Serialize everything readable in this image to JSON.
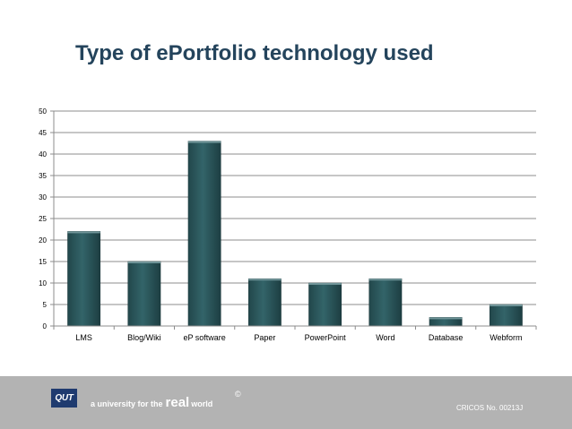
{
  "slide": {
    "title": "Type of ePortfolio technology used"
  },
  "chart_data": {
    "type": "bar",
    "title": "",
    "xlabel": "",
    "ylabel": "",
    "categories": [
      "LMS",
      "Blog/Wiki",
      "eP software",
      "Paper",
      "PowerPoint",
      "Word",
      "Database",
      "Webform"
    ],
    "values": [
      22,
      15,
      43,
      11,
      10,
      11,
      2,
      5
    ],
    "ylim": [
      0,
      50
    ],
    "yticks": [
      0,
      5,
      10,
      15,
      20,
      25,
      30,
      35,
      40,
      45,
      50
    ],
    "grid": true,
    "legend": "none",
    "bar_color": "#2e5a5e"
  },
  "footer": {
    "logo_text": "QUT",
    "tagline_prefix": "a university for the",
    "tagline_emphasis": "real",
    "tagline_suffix": "world",
    "copyright": "©",
    "cricos": "CRICOS No. 00213J"
  }
}
